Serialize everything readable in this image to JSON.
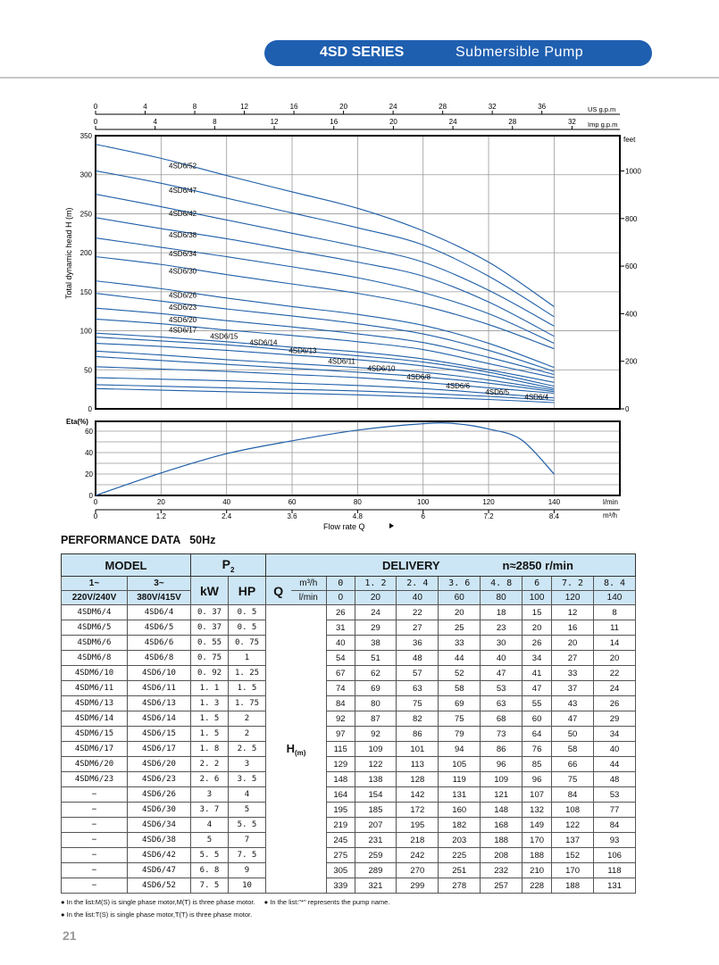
{
  "header": {
    "series": "4SD SERIES",
    "title": "Submersible Pump"
  },
  "chart_data": [
    {
      "type": "line",
      "ylabel": "Total dynamic head H (m)",
      "ylim": [
        0,
        350
      ],
      "yticks": [
        0,
        50,
        100,
        150,
        200,
        250,
        300,
        350
      ],
      "right_axis": {
        "label": "feet",
        "ticks": [
          0,
          200,
          400,
          600,
          800,
          1000
        ]
      },
      "top_axes": [
        {
          "label": "US g.p.m",
          "ticks": [
            0,
            4,
            8,
            12,
            16,
            20,
            24,
            28,
            32,
            36
          ]
        },
        {
          "label": "Imp g.p.m",
          "ticks": [
            0,
            4,
            8,
            12,
            16,
            20,
            24,
            28,
            32
          ]
        }
      ],
      "x_lmin": [
        0,
        20,
        40,
        60,
        80,
        100,
        120,
        140
      ],
      "grid": true,
      "series": [
        {
          "name": "4SD6/52",
          "values": [
            339,
            321,
            299,
            278,
            257,
            228,
            188,
            131
          ]
        },
        {
          "name": "4SD6/47",
          "values": [
            305,
            289,
            270,
            251,
            232,
            210,
            170,
            118
          ]
        },
        {
          "name": "4SD6/42",
          "values": [
            275,
            259,
            242,
            225,
            208,
            188,
            152,
            106
          ]
        },
        {
          "name": "4SD6/38",
          "values": [
            245,
            231,
            218,
            203,
            188,
            170,
            137,
            93
          ]
        },
        {
          "name": "4SD6/34",
          "values": [
            219,
            207,
            195,
            182,
            168,
            149,
            122,
            84
          ]
        },
        {
          "name": "4SD6/30",
          "values": [
            195,
            185,
            172,
            160,
            148,
            132,
            108,
            77
          ]
        },
        {
          "name": "4SD6/26",
          "values": [
            164,
            154,
            142,
            131,
            121,
            107,
            84,
            53
          ]
        },
        {
          "name": "4SD6/23",
          "values": [
            148,
            138,
            128,
            119,
            109,
            96,
            75,
            48
          ]
        },
        {
          "name": "4SD6/20",
          "values": [
            129,
            122,
            113,
            105,
            96,
            85,
            66,
            44
          ]
        },
        {
          "name": "4SD6/17",
          "values": [
            115,
            109,
            101,
            94,
            86,
            76,
            58,
            40
          ]
        },
        {
          "name": "4SD6/15",
          "values": [
            97,
            92,
            86,
            79,
            73,
            64,
            50,
            34
          ]
        },
        {
          "name": "4SD6/14",
          "values": [
            92,
            87,
            82,
            75,
            68,
            60,
            47,
            29
          ]
        },
        {
          "name": "4SD6/13",
          "values": [
            84,
            80,
            75,
            69,
            63,
            55,
            43,
            26
          ]
        },
        {
          "name": "4SD6/11",
          "values": [
            74,
            69,
            63,
            58,
            53,
            47,
            37,
            24
          ]
        },
        {
          "name": "4SD6/10",
          "values": [
            67,
            62,
            57,
            52,
            47,
            41,
            33,
            22
          ]
        },
        {
          "name": "4SD6/8",
          "values": [
            54,
            51,
            48,
            44,
            40,
            34,
            27,
            20
          ]
        },
        {
          "name": "4SD6/6",
          "values": [
            40,
            38,
            36,
            33,
            30,
            26,
            20,
            14
          ]
        },
        {
          "name": "4SD6/5",
          "values": [
            31,
            29,
            27,
            25,
            23,
            20,
            16,
            11
          ]
        },
        {
          "name": "4SD6/4",
          "values": [
            26,
            24,
            22,
            20,
            18,
            15,
            12,
            8
          ]
        }
      ]
    },
    {
      "type": "line",
      "ylabel": "Eta(%)",
      "ylim": [
        0,
        69
      ],
      "yticks": [
        0,
        20,
        40,
        60
      ],
      "xlabel": "Flow rate Q",
      "x_units": [
        "l/min",
        "m³/h"
      ],
      "xticks_lmin": [
        0,
        20,
        40,
        60,
        80,
        100,
        120,
        140
      ],
      "xticks_m3h": [
        "0",
        "1.2",
        "2.4",
        "3.6",
        "4.8",
        "6",
        "7.2",
        "8.4"
      ],
      "x": [
        0,
        20,
        40,
        60,
        80,
        100,
        110,
        120,
        130,
        140
      ],
      "values": [
        0,
        21,
        39,
        51,
        61,
        67,
        67,
        62,
        52,
        20
      ]
    }
  ],
  "perf_title": "PERFORMANCE DATA   50Hz",
  "table": {
    "model": "MODEL",
    "p2": "P",
    "p2_sub": "2",
    "delivery": "DELIVERY",
    "speed": "n≈2850 r/min",
    "col1": "1~",
    "col1b": "220V/240V",
    "col2": "3~",
    "col2b": "380V/415V",
    "kw": "kW",
    "hp": "HP",
    "q": "Q",
    "m3h": "m³/h",
    "lmin": "l/min",
    "h": "H",
    "h_sub": "(m)",
    "q_m3h": [
      "0",
      "1. 2",
      "2. 4",
      "3. 6",
      "4. 8",
      "6",
      "7. 2",
      "8. 4"
    ],
    "q_lmin": [
      "0",
      "20",
      "40",
      "60",
      "80",
      "100",
      "120",
      "140"
    ],
    "rows": [
      [
        "4SDM6/4",
        "4SD6/4",
        "0. 37",
        "0. 5"
      ],
      [
        "4SDM6/5",
        "4SD6/5",
        "0. 37",
        "0. 5"
      ],
      [
        "4SDM6/6",
        "4SD6/6",
        "0. 55",
        "0. 75"
      ],
      [
        "4SDM6/8",
        "4SD6/8",
        "0. 75",
        "1"
      ],
      [
        "4SDM6/10",
        "4SD6/10",
        "0. 92",
        "1. 25"
      ],
      [
        "4SDM6/11",
        "4SD6/11",
        "1. 1",
        "1. 5"
      ],
      [
        "4SDM6/13",
        "4SD6/13",
        "1. 3",
        "1. 75"
      ],
      [
        "4SDM6/14",
        "4SD6/14",
        "1. 5",
        "2"
      ],
      [
        "4SDM6/15",
        "4SD6/15",
        "1. 5",
        "2"
      ],
      [
        "4SDM6/17",
        "4SD6/17",
        "1. 8",
        "2. 5"
      ],
      [
        "4SDM6/20",
        "4SD6/20",
        "2. 2",
        "3"
      ],
      [
        "4SDM6/23",
        "4SD6/23",
        "2. 6",
        "3. 5"
      ],
      [
        "−",
        "4SD6/26",
        "3",
        "4"
      ],
      [
        "−",
        "4SD6/30",
        "3. 7",
        "5"
      ],
      [
        "−",
        "4SD6/34",
        "4",
        "5. 5"
      ],
      [
        "−",
        "4SD6/38",
        "5",
        "7"
      ],
      [
        "−",
        "4SD6/42",
        "5. 5",
        "7. 5"
      ],
      [
        "−",
        "4SD6/47",
        "6. 8",
        "9"
      ],
      [
        "−",
        "4SD6/52",
        "7. 5",
        "10"
      ]
    ]
  },
  "notes": [
    "In the list:M(S) is single phase motor,M(T) is three phase motor.",
    "In the list:\"*\" represents the pump name.",
    "In the list:T(S) is single phase motor,T(T) is three phase motor."
  ],
  "page_number": "21"
}
